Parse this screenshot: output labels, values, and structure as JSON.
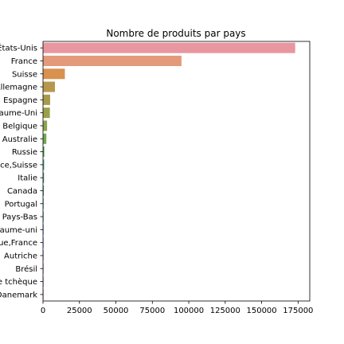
{
  "chart_data": {
    "type": "bar",
    "orientation": "horizontal",
    "title": "Nombre de produits par pays",
    "xlabel": "",
    "ylabel": "",
    "xlim": [
      0,
      183000
    ],
    "xticks": [
      0,
      25000,
      50000,
      75000,
      100000,
      125000,
      150000,
      175000
    ],
    "xtick_labels": [
      "0",
      "25000",
      "50000",
      "75000",
      "100000",
      "125000",
      "150000",
      "175000"
    ],
    "grid": false,
    "categories": [
      "États-Unis",
      "France",
      "Suisse",
      "Allemagne",
      "Espagne",
      "Royaume-Uni",
      "Belgique",
      "Australie",
      "Russie",
      "France,Suisse",
      "Italie",
      "Canada",
      "Portugal",
      "Pays-Bas",
      "en:royaume-uni",
      "Belgique,France",
      "Autriche",
      "Brésil",
      "République tchèque",
      "Danemark"
    ],
    "values": [
      173000,
      95000,
      15000,
      8200,
      4900,
      4700,
      2800,
      2300,
      900,
      800,
      700,
      600,
      400,
      350,
      300,
      250,
      200,
      200,
      150,
      150
    ],
    "colors": [
      "#e8969f",
      "#e39a7a",
      "#d8914f",
      "#b7974d",
      "#a69b4b",
      "#9a9f4b",
      "#8ca34b",
      "#72a84f",
      "#4ea55b",
      "#4aa37b",
      "#48a28d",
      "#47a19b",
      "#49a0ac",
      "#4a9fbd",
      "#5a9cd1",
      "#8a95dc",
      "#a88fdc",
      "#c58ad8",
      "#d887c6",
      "#e48bb3"
    ]
  }
}
